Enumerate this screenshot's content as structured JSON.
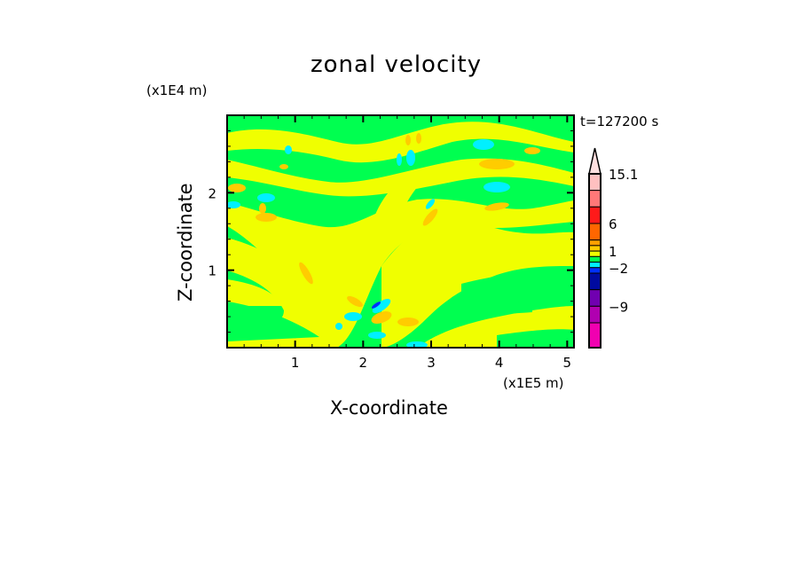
{
  "chart_data": {
    "type": "heatmap",
    "title": "zonal velocity",
    "xlabel": "X-coordinate",
    "ylabel": "Z-coordinate",
    "x_unit": "(x1E5 m)",
    "y_unit": "(x1E4 m)",
    "time_label": "t=127200 s",
    "xlim": [
      0,
      5.1
    ],
    "ylim": [
      0,
      3.0
    ],
    "xticks": [
      1,
      2,
      3,
      4,
      5
    ],
    "yticks": [
      1,
      2
    ],
    "colorbar": {
      "labels": [
        "15.1",
        "6",
        "1",
        "−2",
        "−9"
      ],
      "label_positions_index": [
        0,
        3,
        6,
        9,
        12
      ],
      "colors_top_to_bottom": [
        "#ffc0c0",
        "#ff7878",
        "#ff1a1a",
        "#ff6600",
        "#ffa000",
        "#ffcc00",
        "#f0ff00",
        "#00ff50",
        "#00f0ff",
        "#0030ff",
        "#000aa0",
        "#7000b0",
        "#b000b0",
        "#f000b0"
      ],
      "extend_top_color": "#ffe0e0"
    },
    "field_colors": {
      "green": "#00ff50",
      "yellow": "#f0ff00",
      "orange": "#ffcc00",
      "cyan": "#00f0ff",
      "blue": "#0030ff"
    }
  }
}
